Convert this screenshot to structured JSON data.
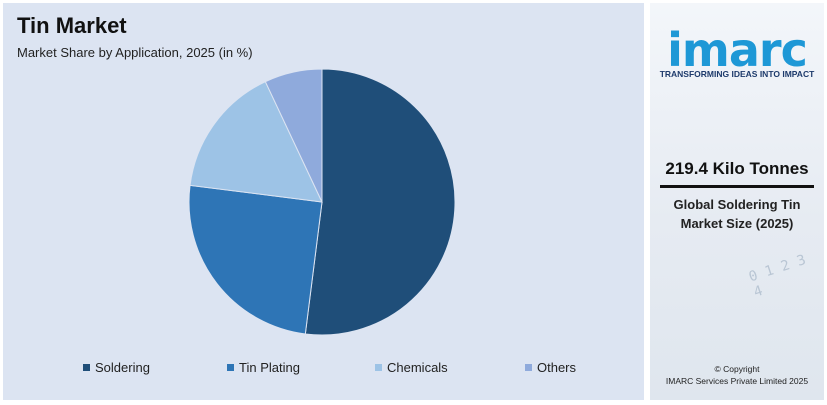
{
  "chart_data": {
    "type": "pie",
    "title": "Tin Market",
    "subtitle": "Market Share by Application, 2025 (in %)",
    "categories": [
      "Soldering",
      "Tin Plating",
      "Chemicals",
      "Others"
    ],
    "values": [
      52,
      25,
      16,
      7
    ],
    "colors": [
      "#1f4e79",
      "#2e75b6",
      "#9dc3e6",
      "#8faadc"
    ],
    "legend_position": "bottom"
  },
  "side_panel": {
    "logo": "imarc",
    "tagline": "TRANSFORMING IDEAS INTO IMPACT",
    "stat_value": "219.4 Kilo Tonnes",
    "stat_label": "Global Soldering Tin Market Size (2025)",
    "copyright_line1": "© Copyright",
    "copyright_line2": "IMARC Services Private Limited 2025"
  }
}
